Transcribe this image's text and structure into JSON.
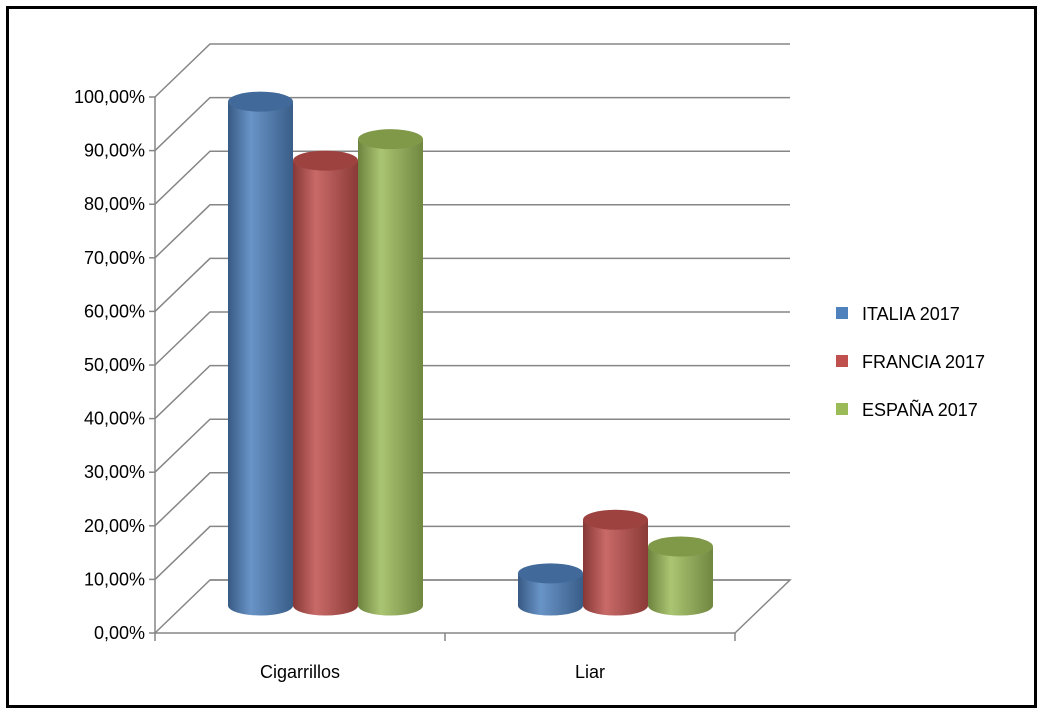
{
  "chart_data": {
    "type": "bar",
    "style": "3d-cylinder",
    "categories": [
      "Cigarrillos",
      "Liar"
    ],
    "series": [
      {
        "name": "ITALIA 2017",
        "color": "#4F81BD",
        "values": [
          0.94,
          0.06
        ]
      },
      {
        "name": "FRANCIA  2017",
        "color": "#C0504D",
        "values": [
          0.83,
          0.16
        ]
      },
      {
        "name": "ESPAÑA 2017",
        "color": "#9BBB59",
        "values": [
          0.87,
          0.11
        ]
      }
    ],
    "ylim": [
      0,
      1.0
    ],
    "yticks": [
      "0,00%",
      "10,00%",
      "20,00%",
      "30,00%",
      "40,00%",
      "50,00%",
      "60,00%",
      "70,00%",
      "80,00%",
      "90,00%",
      "100,00%"
    ],
    "grid": true,
    "legend_position": "right",
    "title": "",
    "xlabel": "",
    "ylabel": ""
  }
}
